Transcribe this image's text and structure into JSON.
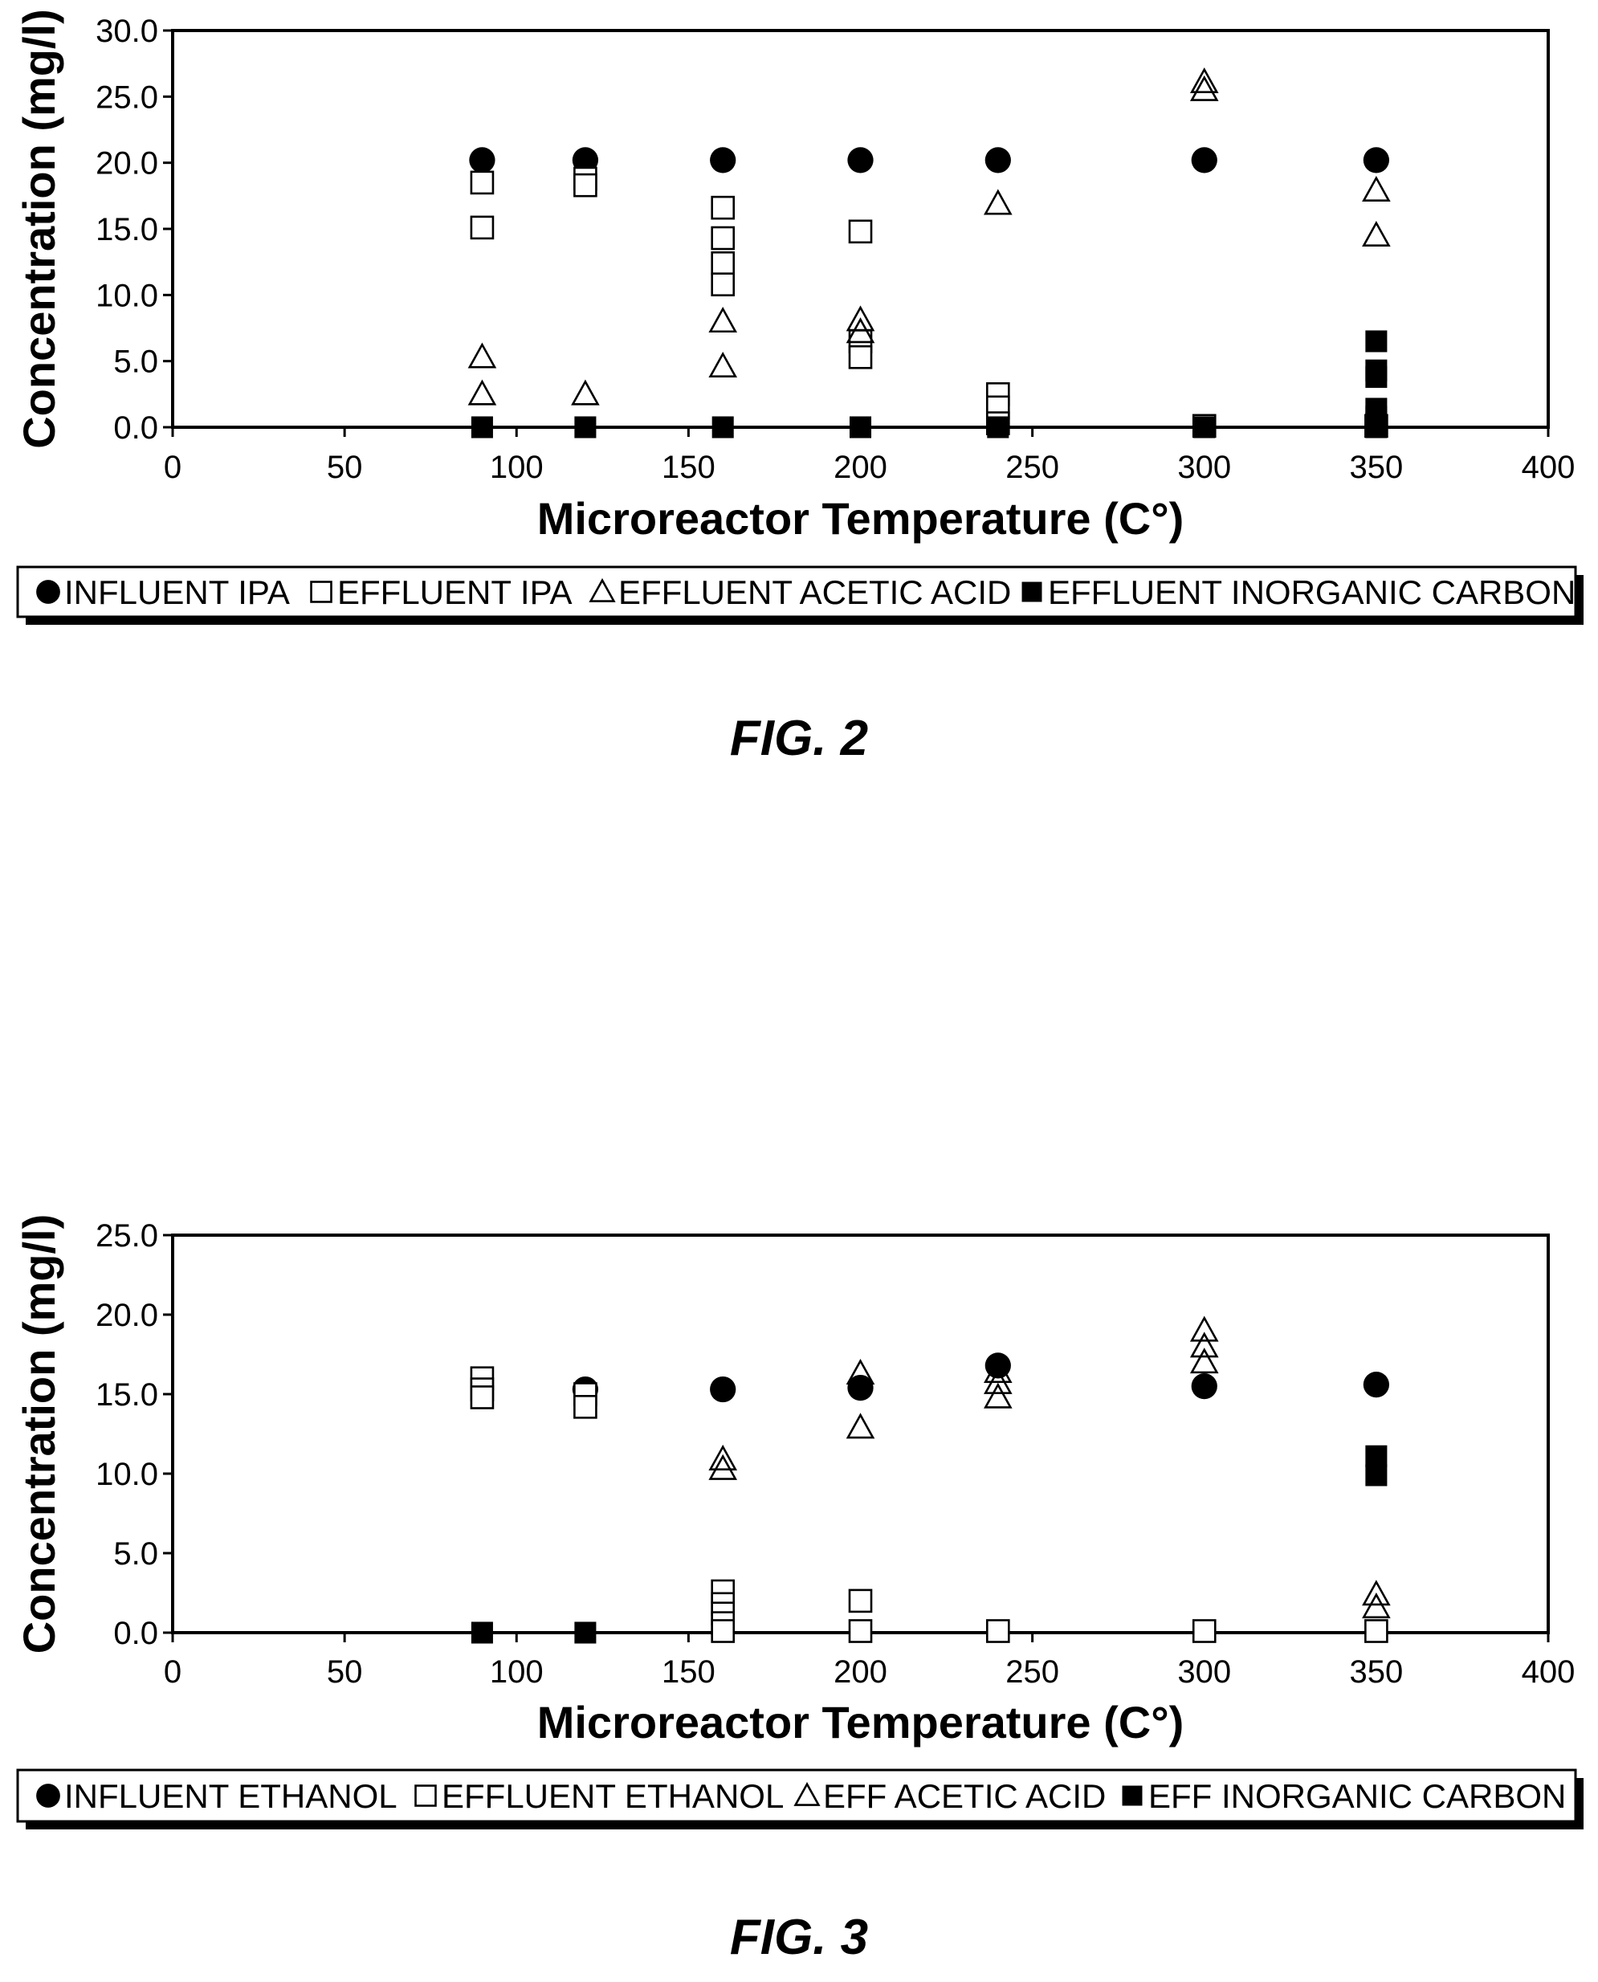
{
  "chart_data": [
    {
      "type": "scatter",
      "caption": "FIG. 2",
      "xlabel": "Microreactor Temperature (C°)",
      "ylabel": "Concentration (mg/l)",
      "xlim": [
        0,
        400
      ],
      "ylim": [
        0,
        30
      ],
      "xticks": [
        "0",
        "50",
        "100",
        "150",
        "200",
        "250",
        "300",
        "350",
        "400"
      ],
      "yticks": [
        "0.0",
        "5.0",
        "10.0",
        "15.0",
        "20.0",
        "25.0",
        "30.0"
      ],
      "grid": false,
      "legend_position": "bottom",
      "series": [
        {
          "name": "INFLUENT IPA",
          "marker": "filled-circle",
          "points": [
            [
              90,
              20.2
            ],
            [
              120,
              20.2
            ],
            [
              160,
              20.2
            ],
            [
              200,
              20.2
            ],
            [
              240,
              20.2
            ],
            [
              300,
              20.2
            ],
            [
              350,
              20.2
            ]
          ]
        },
        {
          "name": "EFFLUENT IPA",
          "marker": "open-square",
          "points": [
            [
              90,
              18.5
            ],
            [
              90,
              15.1
            ],
            [
              120,
              18.8
            ],
            [
              120,
              18.3
            ],
            [
              160,
              16.6
            ],
            [
              160,
              14.3
            ],
            [
              160,
              12.4
            ],
            [
              160,
              10.8
            ],
            [
              200,
              14.8
            ],
            [
              200,
              6.5
            ],
            [
              200,
              5.3
            ],
            [
              240,
              2.5
            ],
            [
              240,
              1.5
            ],
            [
              240,
              0.3
            ],
            [
              300,
              0.1
            ],
            [
              350,
              0.1
            ]
          ]
        },
        {
          "name": "EFFLUENT ACETIC ACID",
          "marker": "open-triangle",
          "points": [
            [
              90,
              5.3
            ],
            [
              90,
              2.5
            ],
            [
              120,
              2.5
            ],
            [
              160,
              8.0
            ],
            [
              160,
              4.6
            ],
            [
              200,
              8.1
            ],
            [
              200,
              7.2
            ],
            [
              240,
              16.9
            ],
            [
              300,
              26.1
            ],
            [
              300,
              25.5
            ],
            [
              350,
              17.9
            ],
            [
              350,
              14.5
            ]
          ]
        },
        {
          "name": "EFFLUENT INORGANIC CARBON",
          "marker": "filled-square",
          "points": [
            [
              90,
              0
            ],
            [
              120,
              0
            ],
            [
              160,
              0
            ],
            [
              200,
              0
            ],
            [
              240,
              0
            ],
            [
              300,
              0
            ],
            [
              350,
              6.5
            ],
            [
              350,
              4.3
            ],
            [
              350,
              3.8
            ],
            [
              350,
              1.4
            ],
            [
              350,
              0.8
            ],
            [
              350,
              0.3
            ],
            [
              350,
              0
            ]
          ]
        }
      ]
    },
    {
      "type": "scatter",
      "caption": "FIG. 3",
      "xlabel": "Microreactor Temperature (C°)",
      "ylabel": "Concentration (mg/l)",
      "xlim": [
        0,
        400
      ],
      "ylim": [
        0,
        25
      ],
      "xticks": [
        "0",
        "50",
        "100",
        "150",
        "200",
        "250",
        "300",
        "350",
        "400"
      ],
      "yticks": [
        "0.0",
        "5.0",
        "10.0",
        "15.0",
        "20.0",
        "25.0"
      ],
      "grid": false,
      "legend_position": "bottom",
      "series": [
        {
          "name": "INFLUENT ETHANOL",
          "marker": "filled-circle",
          "points": [
            [
              120,
              15.3
            ],
            [
              160,
              15.3
            ],
            [
              200,
              15.4
            ],
            [
              240,
              16.8
            ],
            [
              300,
              15.5
            ],
            [
              350,
              15.6
            ]
          ]
        },
        {
          "name": "EFFLUENT ETHANOL",
          "marker": "open-square",
          "points": [
            [
              90,
              16.0
            ],
            [
              90,
              15.3
            ],
            [
              90,
              14.8
            ],
            [
              120,
              15.0
            ],
            [
              120,
              14.2
            ],
            [
              160,
              2.6
            ],
            [
              160,
              1.8
            ],
            [
              160,
              1.2
            ],
            [
              160,
              0.6
            ],
            [
              160,
              0.1
            ],
            [
              200,
              2.0
            ],
            [
              200,
              0.1
            ],
            [
              240,
              0.1
            ],
            [
              300,
              0.1
            ],
            [
              350,
              0.1
            ]
          ]
        },
        {
          "name": "EFF ACETIC ACID",
          "marker": "open-triangle",
          "points": [
            [
              160,
              10.9
            ],
            [
              160,
              10.3
            ],
            [
              200,
              16.3
            ],
            [
              200,
              12.9
            ],
            [
              240,
              16.4
            ],
            [
              240,
              15.7
            ],
            [
              240,
              14.8
            ],
            [
              300,
              19.0
            ],
            [
              300,
              18.0
            ],
            [
              300,
              17.0
            ],
            [
              350,
              2.4
            ],
            [
              350,
              1.6
            ]
          ]
        },
        {
          "name": "EFF INORGANIC CARBON",
          "marker": "filled-square",
          "points": [
            [
              90,
              0
            ],
            [
              120,
              0
            ],
            [
              350,
              11.1
            ],
            [
              350,
              9.9
            ]
          ]
        }
      ]
    }
  ]
}
